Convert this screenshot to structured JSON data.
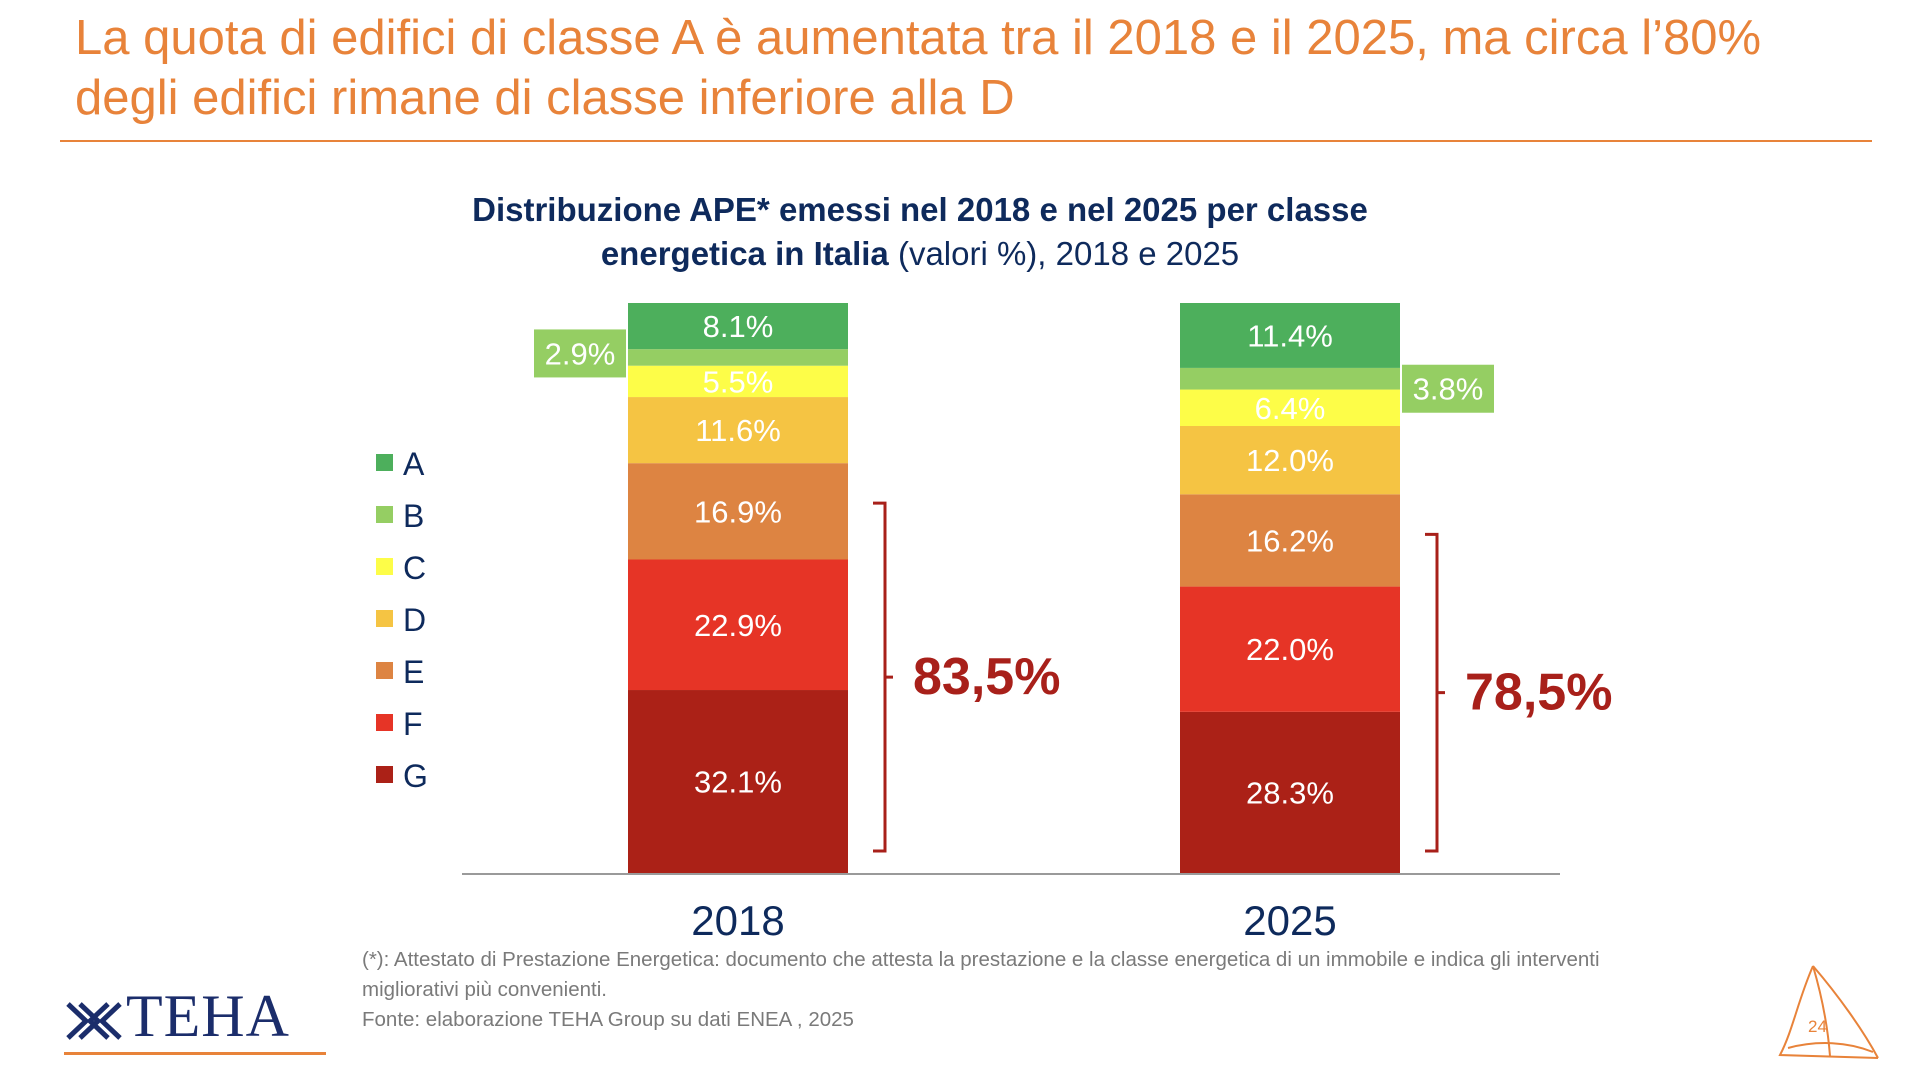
{
  "slide": {
    "title": "La quota di edifici di classe A è aumentata tra il 2018 e il 2025, ma circa l’80% degli edifici rimane di classe inferiore alla D",
    "page_number": "24",
    "logo_text": "TEHA"
  },
  "chart_data": {
    "type": "bar",
    "stacked": true,
    "title_bold": "Distribuzione APE* emessi nel 2018 e nel 2025 per classe energetica in Italia",
    "title_regular": " (valori %), 2018 e 2025",
    "categories": [
      "2018",
      "2025"
    ],
    "series": [
      {
        "name": "A",
        "color": "#4DAF5C",
        "values": [
          8.1,
          11.4
        ],
        "labels": [
          "8.1%",
          "11.4%"
        ]
      },
      {
        "name": "B",
        "color": "#95CE63",
        "values": [
          2.9,
          3.8
        ],
        "labels": [
          "2.9%",
          "3.8%"
        ]
      },
      {
        "name": "C",
        "color": "#FDFD48",
        "values": [
          5.5,
          6.4
        ],
        "labels": [
          "5.5%",
          "6.4%"
        ]
      },
      {
        "name": "D",
        "color": "#F5C443",
        "values": [
          11.6,
          12.0
        ],
        "labels": [
          "11.6%",
          "12.0%"
        ]
      },
      {
        "name": "E",
        "color": "#DD8442",
        "values": [
          16.9,
          16.2
        ],
        "labels": [
          "16.9%",
          "16.2%"
        ]
      },
      {
        "name": "F",
        "color": "#E63426",
        "values": [
          22.9,
          22.0
        ],
        "labels": [
          "22.9%",
          "22.0%"
        ]
      },
      {
        "name": "G",
        "color": "#AB2117",
        "values": [
          32.1,
          28.3
        ],
        "labels": [
          "32.1%",
          "28.3%"
        ]
      }
    ],
    "bracket_totals": [
      "83,5%",
      "78,5%"
    ],
    "bracket_color": "#A8201A",
    "legend_position": "left",
    "axis_line_color": "#9a9a9a",
    "label_color": "#0E2A5C"
  },
  "footnote": {
    "line1": "(*): Attestato di Prestazione Energetica: documento che attesta la prestazione e la classe energetica di un immobile e indica gli interventi",
    "line2": "migliorativi più convenienti.",
    "line3": "Fonte: elaborazione TEHA Group su dati ENEA , 2025"
  }
}
